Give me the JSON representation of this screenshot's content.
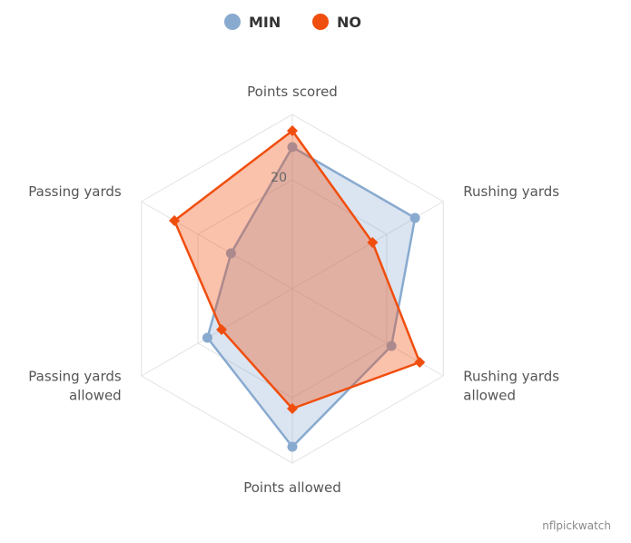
{
  "chart_data": {
    "type": "radar",
    "axes": [
      "Points scored",
      "Rushing yards",
      "Rushing yards allowed",
      "Points allowed",
      "Passing yards allowed",
      "Passing yards"
    ],
    "axis_labels": [
      [
        "Points scored"
      ],
      [
        "Rushing yards"
      ],
      [
        "Rushing yards",
        "allowed"
      ],
      [
        "Points allowed"
      ],
      [
        "Passing yards",
        "allowed"
      ],
      [
        "Passing yards"
      ]
    ],
    "rmax": 32,
    "ticks": [
      20
    ],
    "grid": true,
    "legend_position": "top-center",
    "series": [
      {
        "name": "MIN",
        "color": "#88aacf",
        "marker": "circle",
        "values": [
          26,
          26,
          21,
          29,
          18,
          13
        ]
      },
      {
        "name": "NO",
        "color": "#f04e0e",
        "marker": "diamond",
        "values": [
          29,
          17,
          27,
          22,
          15,
          25
        ]
      }
    ]
  },
  "legend": {
    "min_label": "MIN",
    "no_label": "NO"
  },
  "tick_label": "20",
  "credit": "nflpickwatch"
}
